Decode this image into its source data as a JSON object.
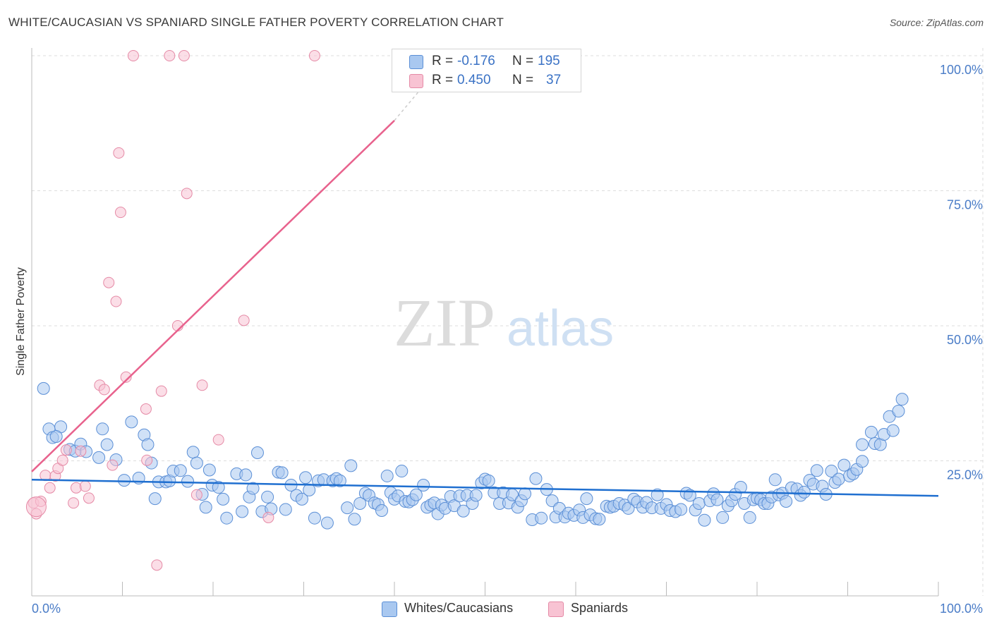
{
  "title": "WHITE/CAUCASIAN VS SPANIARD SINGLE FATHER POVERTY CORRELATION CHART",
  "source": "Source: ZipAtlas.com",
  "watermark": {
    "zip": "ZIP",
    "atlas": "atlas"
  },
  "legend": {
    "r_label": "R =",
    "n_label": "N =",
    "rows": [
      {
        "r": "-0.176",
        "n": "195",
        "color": "#a9c8f0",
        "border": "#5b8fd6"
      },
      {
        "r": "0.450",
        "n": "37",
        "color": "#f8c3d3",
        "border": "#e58aa6"
      }
    ]
  },
  "bottom_legend": [
    {
      "label": "Whites/Caucasians",
      "color": "#a9c8f0",
      "border": "#5b8fd6"
    },
    {
      "label": "Spaniards",
      "color": "#f8c3d3",
      "border": "#e58aa6"
    }
  ],
  "chart_data": {
    "type": "scatter",
    "title": "WHITE/CAUCASIAN VS SPANIARD SINGLE FATHER POVERTY CORRELATION CHART",
    "xlabel": "",
    "ylabel": "Single Father Poverty",
    "x_tick_labels": [
      "0.0%",
      "100.0%"
    ],
    "y_tick_labels": [
      "25.0%",
      "50.0%",
      "75.0%",
      "100.0%"
    ],
    "xlim": [
      0,
      100
    ],
    "ylim": [
      0,
      103
    ],
    "grid": true,
    "colors": {
      "blue": "#5b8fd6",
      "blue_fill": "#a9c8f0",
      "pink": "#e58aa6",
      "pink_fill": "#f8c3d3",
      "blue_line": "#1f6fd0",
      "pink_line": "#e8628d"
    },
    "series": [
      {
        "name": "Whites/Caucasians",
        "trend": {
          "x": [
            0,
            100
          ],
          "y": [
            21.5,
            18.5
          ]
        },
        "points": [
          [
            1.3,
            38.4
          ],
          [
            1.9,
            30.9
          ],
          [
            2.3,
            29.3
          ],
          [
            3.2,
            31.3
          ],
          [
            2.7,
            29.5
          ],
          [
            4.2,
            27.1
          ],
          [
            4.8,
            26.8
          ],
          [
            5.4,
            28.1
          ],
          [
            6.0,
            26.7
          ],
          [
            7.4,
            25.6
          ],
          [
            7.8,
            30.9
          ],
          [
            8.3,
            28.0
          ],
          [
            9.3,
            25.2
          ],
          [
            10.2,
            21.4
          ],
          [
            11.0,
            32.2
          ],
          [
            11.8,
            21.8
          ],
          [
            12.4,
            29.8
          ],
          [
            12.8,
            28.0
          ],
          [
            13.2,
            24.6
          ],
          [
            13.6,
            18.0
          ],
          [
            14.0,
            21.1
          ],
          [
            14.8,
            21.1
          ],
          [
            15.2,
            21.3
          ],
          [
            15.6,
            23.1
          ],
          [
            16.4,
            23.2
          ],
          [
            17.2,
            21.2
          ],
          [
            17.8,
            26.6
          ],
          [
            18.2,
            24.6
          ],
          [
            18.8,
            18.8
          ],
          [
            19.2,
            16.4
          ],
          [
            19.6,
            23.3
          ],
          [
            19.9,
            20.5
          ],
          [
            20.6,
            20.1
          ],
          [
            21.1,
            17.9
          ],
          [
            21.5,
            14.4
          ],
          [
            22.6,
            22.6
          ],
          [
            23.2,
            15.6
          ],
          [
            23.6,
            22.4
          ],
          [
            24.0,
            18.3
          ],
          [
            24.4,
            19.9
          ],
          [
            24.9,
            26.5
          ],
          [
            25.4,
            15.6
          ],
          [
            26.0,
            18.3
          ],
          [
            26.4,
            16.1
          ],
          [
            27.2,
            22.9
          ],
          [
            27.6,
            22.8
          ],
          [
            28.0,
            16.0
          ],
          [
            28.6,
            20.5
          ],
          [
            29.2,
            18.6
          ],
          [
            29.8,
            17.9
          ],
          [
            30.2,
            21.9
          ],
          [
            30.6,
            19.6
          ],
          [
            31.2,
            14.4
          ],
          [
            31.6,
            21.3
          ],
          [
            32.2,
            21.5
          ],
          [
            32.6,
            13.5
          ],
          [
            33.2,
            21.3
          ],
          [
            33.6,
            21.7
          ],
          [
            34.0,
            21.3
          ],
          [
            34.8,
            16.3
          ],
          [
            35.2,
            24.1
          ],
          [
            35.6,
            14.2
          ],
          [
            36.2,
            17.1
          ],
          [
            36.8,
            19.0
          ],
          [
            37.2,
            18.6
          ],
          [
            37.8,
            17.2
          ],
          [
            38.2,
            16.9
          ],
          [
            38.6,
            15.8
          ],
          [
            39.2,
            22.2
          ],
          [
            39.6,
            19.1
          ],
          [
            40.0,
            17.9
          ],
          [
            40.4,
            18.5
          ],
          [
            40.8,
            23.1
          ],
          [
            41.2,
            17.5
          ],
          [
            41.6,
            17.4
          ],
          [
            42.0,
            17.8
          ],
          [
            42.4,
            18.7
          ],
          [
            43.2,
            20.5
          ],
          [
            43.6,
            16.4
          ],
          [
            44.0,
            16.8
          ],
          [
            44.4,
            17.2
          ],
          [
            44.8,
            15.2
          ],
          [
            45.2,
            16.8
          ],
          [
            45.6,
            16.2
          ],
          [
            46.2,
            18.4
          ],
          [
            46.6,
            16.7
          ],
          [
            47.2,
            18.5
          ],
          [
            47.6,
            15.7
          ],
          [
            48.0,
            18.6
          ],
          [
            48.6,
            17.1
          ],
          [
            49.0,
            18.6
          ],
          [
            49.6,
            20.9
          ],
          [
            50.0,
            21.6
          ],
          [
            50.4,
            21.3
          ],
          [
            51.0,
            19.1
          ],
          [
            51.6,
            17.1
          ],
          [
            52.0,
            19.1
          ],
          [
            52.6,
            17.2
          ],
          [
            53.0,
            18.7
          ],
          [
            53.6,
            16.4
          ],
          [
            54.0,
            17.6
          ],
          [
            54.4,
            18.9
          ],
          [
            55.2,
            14.1
          ],
          [
            55.6,
            21.7
          ],
          [
            56.2,
            14.4
          ],
          [
            56.8,
            19.7
          ],
          [
            57.4,
            17.6
          ],
          [
            57.8,
            14.6
          ],
          [
            58.2,
            16.2
          ],
          [
            58.8,
            14.6
          ],
          [
            59.2,
            15.3
          ],
          [
            59.8,
            14.9
          ],
          [
            60.4,
            15.9
          ],
          [
            60.8,
            14.5
          ],
          [
            61.2,
            18.0
          ],
          [
            61.6,
            15.0
          ],
          [
            62.2,
            14.3
          ],
          [
            62.6,
            14.2
          ],
          [
            63.4,
            16.6
          ],
          [
            63.8,
            16.4
          ],
          [
            64.2,
            16.6
          ],
          [
            64.8,
            17.1
          ],
          [
            65.4,
            16.8
          ],
          [
            65.8,
            16.2
          ],
          [
            66.4,
            17.9
          ],
          [
            66.8,
            17.4
          ],
          [
            67.4,
            16.4
          ],
          [
            67.8,
            17.3
          ],
          [
            68.4,
            16.3
          ],
          [
            69.0,
            18.7
          ],
          [
            69.4,
            16.2
          ],
          [
            70.0,
            16.9
          ],
          [
            70.4,
            15.8
          ],
          [
            71.0,
            15.6
          ],
          [
            71.6,
            16.0
          ],
          [
            72.2,
            19.0
          ],
          [
            72.6,
            18.6
          ],
          [
            73.2,
            15.9
          ],
          [
            73.6,
            17.1
          ],
          [
            74.2,
            14.0
          ],
          [
            74.8,
            17.6
          ],
          [
            75.2,
            18.9
          ],
          [
            75.6,
            17.8
          ],
          [
            76.2,
            14.5
          ],
          [
            76.8,
            16.7
          ],
          [
            77.2,
            17.6
          ],
          [
            77.6,
            18.8
          ],
          [
            78.2,
            20.1
          ],
          [
            78.6,
            17.1
          ],
          [
            79.2,
            14.5
          ],
          [
            79.6,
            17.8
          ],
          [
            80.0,
            18.1
          ],
          [
            80.4,
            17.8
          ],
          [
            80.8,
            17.1
          ],
          [
            81.2,
            17.1
          ],
          [
            81.6,
            18.3
          ],
          [
            82.0,
            21.5
          ],
          [
            82.4,
            18.7
          ],
          [
            82.8,
            19.0
          ],
          [
            83.2,
            17.5
          ],
          [
            83.8,
            20.0
          ],
          [
            84.4,
            19.8
          ],
          [
            84.8,
            18.6
          ],
          [
            85.2,
            19.2
          ],
          [
            85.8,
            21.4
          ],
          [
            86.2,
            20.7
          ],
          [
            86.6,
            23.2
          ],
          [
            87.2,
            20.3
          ],
          [
            87.6,
            18.8
          ],
          [
            88.2,
            23.1
          ],
          [
            88.6,
            21.0
          ],
          [
            89.0,
            21.6
          ],
          [
            89.6,
            24.2
          ],
          [
            90.2,
            22.2
          ],
          [
            90.6,
            22.6
          ],
          [
            91.0,
            23.4
          ],
          [
            91.6,
            28.0
          ],
          [
            91.6,
            24.9
          ],
          [
            92.6,
            30.3
          ],
          [
            93.0,
            28.2
          ],
          [
            93.6,
            28.0
          ],
          [
            94.0,
            29.9
          ],
          [
            94.6,
            33.2
          ],
          [
            95.0,
            30.6
          ],
          [
            95.6,
            34.2
          ],
          [
            96.0,
            36.4
          ]
        ]
      },
      {
        "name": "Spaniards",
        "trend": {
          "x": [
            0,
            40
          ],
          "y": [
            23,
            88
          ]
        },
        "trend_dashed": {
          "x": [
            40,
            43.5
          ],
          "y": [
            88,
            95
          ]
        },
        "points": [
          [
            0.2,
            17.2
          ],
          [
            0.5,
            15.2
          ],
          [
            1.0,
            17.5
          ],
          [
            1.5,
            22.3
          ],
          [
            2.0,
            20.0
          ],
          [
            2.6,
            22.2
          ],
          [
            2.9,
            23.6
          ],
          [
            3.4,
            25.1
          ],
          [
            3.8,
            27.0
          ],
          [
            4.6,
            17.2
          ],
          [
            4.9,
            20.0
          ],
          [
            5.4,
            26.8
          ],
          [
            5.9,
            20.3
          ],
          [
            6.3,
            18.1
          ],
          [
            7.5,
            39.0
          ],
          [
            8.0,
            38.2
          ],
          [
            8.5,
            58.0
          ],
          [
            8.9,
            24.2
          ],
          [
            9.3,
            54.5
          ],
          [
            9.6,
            82.0
          ],
          [
            9.8,
            71.0
          ],
          [
            10.4,
            40.5
          ],
          [
            11.2,
            100.0
          ],
          [
            12.6,
            34.6
          ],
          [
            12.7,
            25.1
          ],
          [
            13.8,
            5.7
          ],
          [
            14.3,
            37.9
          ],
          [
            15.2,
            100.0
          ],
          [
            16.1,
            50.0
          ],
          [
            16.8,
            100.0
          ],
          [
            17.1,
            74.5
          ],
          [
            18.2,
            18.7
          ],
          [
            18.8,
            39.0
          ],
          [
            20.6,
            28.9
          ],
          [
            23.4,
            51.0
          ],
          [
            26.1,
            14.5
          ],
          [
            31.2,
            100.0
          ]
        ]
      }
    ]
  }
}
